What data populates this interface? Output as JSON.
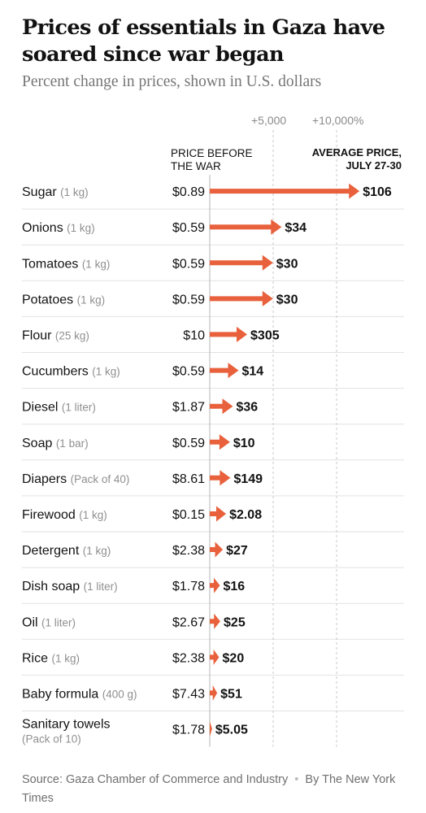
{
  "chart_data": {
    "type": "bar",
    "title": "Prices of essentials in Gaza have soared since war began",
    "subtitle": "Percent change in prices, shown in U.S. dollars",
    "x_ticks": [
      "+5,000",
      "+10,000%"
    ],
    "col_before_lines": [
      "PRICE BEFORE",
      "THE WAR"
    ],
    "col_after_lines": [
      "AVERAGE PRICE,",
      "JULY 27-30"
    ],
    "bar_color": "#e8613c",
    "items": [
      {
        "name": "Sugar",
        "unit": "(1 kg)",
        "before": "$0.89",
        "after": "$106",
        "pct": 11810
      },
      {
        "name": "Onions",
        "unit": "(1 kg)",
        "before": "$0.59",
        "after": "$34",
        "pct": 5663
      },
      {
        "name": "Tomatoes",
        "unit": "(1 kg)",
        "before": "$0.59",
        "after": "$30",
        "pct": 4985
      },
      {
        "name": "Potatoes",
        "unit": "(1 kg)",
        "before": "$0.59",
        "after": "$30",
        "pct": 4985
      },
      {
        "name": "Flour",
        "unit": "(25 kg)",
        "before": "$10",
        "after": "$305",
        "pct": 2950
      },
      {
        "name": "Cucumbers",
        "unit": "(1 kg)",
        "before": "$0.59",
        "after": "$14",
        "pct": 2273
      },
      {
        "name": "Diesel",
        "unit": "(1 liter)",
        "before": "$1.87",
        "after": "$36",
        "pct": 1825
      },
      {
        "name": "Soap",
        "unit": "(1 bar)",
        "before": "$0.59",
        "after": "$10",
        "pct": 1595
      },
      {
        "name": "Diapers",
        "unit": "(Pack of 40)",
        "before": "$8.61",
        "after": "$149",
        "pct": 1631
      },
      {
        "name": "Firewood",
        "unit": "(1 kg)",
        "before": "$0.15",
        "after": "$2.08",
        "pct": 1287
      },
      {
        "name": "Detergent",
        "unit": "(1 kg)",
        "before": "$2.38",
        "after": "$27",
        "pct": 1034
      },
      {
        "name": "Dish soap",
        "unit": "(1 liter)",
        "before": "$1.78",
        "after": "$16",
        "pct": 799
      },
      {
        "name": "Oil",
        "unit": "(1 liter)",
        "before": "$2.67",
        "after": "$25",
        "pct": 836
      },
      {
        "name": "Rice",
        "unit": "(1 kg)",
        "before": "$2.38",
        "after": "$20",
        "pct": 740
      },
      {
        "name": "Baby formula",
        "unit": "(400 g)",
        "before": "$7.43",
        "after": "$51",
        "pct": 586
      },
      {
        "name": "Sanitary towels",
        "unit": "(Pack of 10)",
        "before": "$1.78",
        "after": "$5.05",
        "pct": 184
      }
    ],
    "source": "Source: Gaza Chamber of Commerce and Industry",
    "byline": "By The New York Times"
  }
}
